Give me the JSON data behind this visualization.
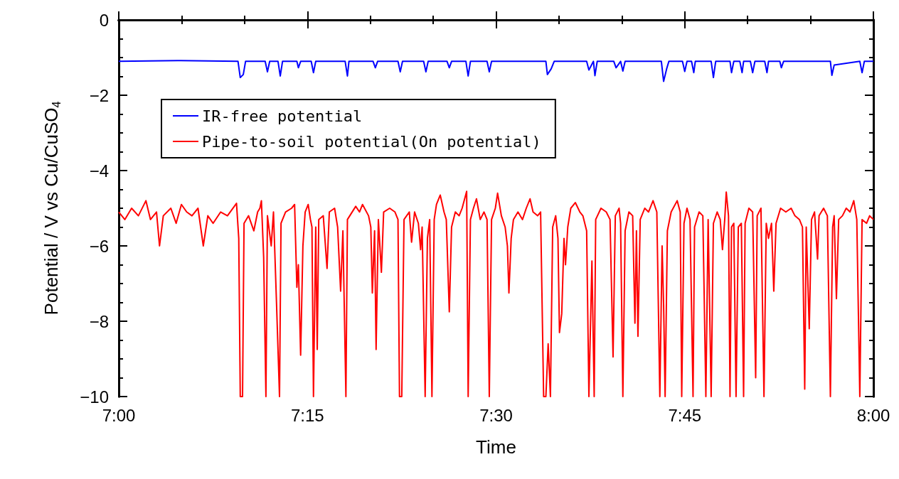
{
  "chart_data": {
    "type": "line",
    "xlabel": "Time",
    "ylabel": "Potential / V vs Cu/CuSO$_{4}$",
    "xlim": [
      7,
      8
    ],
    "xticks": [
      {
        "value": 7,
        "label": "7:00"
      },
      {
        "value": 7.0833,
        "label": null
      },
      {
        "value": 7.1667,
        "label": null
      },
      {
        "value": 7.25,
        "label": "7:15"
      },
      {
        "value": 7.3333,
        "label": null
      },
      {
        "value": 7.4167,
        "label": null
      },
      {
        "value": 7.5,
        "label": "7:30"
      },
      {
        "value": 7.5833,
        "label": null
      },
      {
        "value": 7.6667,
        "label": null
      },
      {
        "value": 7.75,
        "label": "7:45"
      },
      {
        "value": 7.8333,
        "label": null
      },
      {
        "value": 7.9167,
        "label": null
      },
      {
        "value": 8,
        "label": "8:00"
      }
    ],
    "ylim": [
      -10,
      0
    ],
    "yticks": [
      {
        "value": -10,
        "label": "−10"
      },
      {
        "value": -9.5,
        "label": null
      },
      {
        "value": -9,
        "label": null
      },
      {
        "value": -8.5,
        "label": null
      },
      {
        "value": -8,
        "label": "−8"
      },
      {
        "value": -7.5,
        "label": null
      },
      {
        "value": -7,
        "label": null
      },
      {
        "value": -6.5,
        "label": null
      },
      {
        "value": -6,
        "label": "−6"
      },
      {
        "value": -5.5,
        "label": null
      },
      {
        "value": -5,
        "label": null
      },
      {
        "value": -4.5,
        "label": null
      },
      {
        "value": -4,
        "label": "−4"
      },
      {
        "value": -3.5,
        "label": null
      },
      {
        "value": -3,
        "label": null
      },
      {
        "value": -2.5,
        "label": null
      },
      {
        "value": -2,
        "label": "−2"
      },
      {
        "value": -1.5,
        "label": null
      },
      {
        "value": -1,
        "label": null
      },
      {
        "value": -0.5,
        "label": null
      },
      {
        "value": 0,
        "label": "0"
      }
    ],
    "grid": false,
    "legend": "top left",
    "series": [
      {
        "name": "IR-free potential",
        "color": "#0000ff",
        "x": [
          7.0,
          7.078,
          7.158,
          7.161,
          7.165,
          7.168,
          7.194,
          7.197,
          7.2,
          7.211,
          7.214,
          7.217,
          7.236,
          7.238,
          7.241,
          7.255,
          7.258,
          7.261,
          7.3,
          7.303,
          7.305,
          7.337,
          7.34,
          7.343,
          7.37,
          7.373,
          7.376,
          7.404,
          7.407,
          7.41,
          7.435,
          7.438,
          7.441,
          7.46,
          7.463,
          7.466,
          7.488,
          7.491,
          7.494,
          7.566,
          7.568,
          7.573,
          7.577,
          7.62,
          7.623,
          7.629,
          7.631,
          7.634,
          7.656,
          7.659,
          7.665,
          7.668,
          7.671,
          7.719,
          7.722,
          7.726,
          7.729,
          7.747,
          7.75,
          7.753,
          7.759,
          7.762,
          7.764,
          7.785,
          7.788,
          7.791,
          7.81,
          7.812,
          7.815,
          7.823,
          7.826,
          7.828,
          7.837,
          7.84,
          7.843,
          7.856,
          7.859,
          7.861,
          7.876,
          7.878,
          7.881,
          7.943,
          7.945,
          7.948,
          7.982,
          7.985,
          7.988,
          8.0
        ],
        "values": [
          -1.1,
          -1.08,
          -1.1,
          -1.53,
          -1.45,
          -1.1,
          -1.1,
          -1.38,
          -1.1,
          -1.1,
          -1.49,
          -1.1,
          -1.1,
          -1.27,
          -1.1,
          -1.1,
          -1.4,
          -1.1,
          -1.1,
          -1.49,
          -1.1,
          -1.1,
          -1.27,
          -1.1,
          -1.1,
          -1.38,
          -1.1,
          -1.1,
          -1.38,
          -1.1,
          -1.1,
          -1.27,
          -1.1,
          -1.1,
          -1.49,
          -1.1,
          -1.1,
          -1.38,
          -1.1,
          -1.1,
          -1.45,
          -1.3,
          -1.1,
          -1.1,
          -1.33,
          -1.1,
          -1.48,
          -1.1,
          -1.1,
          -1.27,
          -1.1,
          -1.36,
          -1.1,
          -1.1,
          -1.63,
          -1.3,
          -1.1,
          -1.1,
          -1.37,
          -1.1,
          -1.1,
          -1.4,
          -1.1,
          -1.1,
          -1.53,
          -1.1,
          -1.1,
          -1.4,
          -1.1,
          -1.1,
          -1.4,
          -1.1,
          -1.1,
          -1.4,
          -1.1,
          -1.1,
          -1.4,
          -1.1,
          -1.1,
          -1.27,
          -1.1,
          -1.1,
          -1.47,
          -1.2,
          -1.1,
          -1.4,
          -1.1,
          -1.1
        ]
      },
      {
        "name": "Pipe-to-soil potential(On potential)",
        "color": "#ff0000",
        "x": [
          7.0,
          7.008,
          7.017,
          7.026,
          7.036,
          7.042,
          7.05,
          7.054,
          7.059,
          7.069,
          7.076,
          7.083,
          7.09,
          7.097,
          7.105,
          7.112,
          7.118,
          7.125,
          7.135,
          7.144,
          7.156,
          7.159,
          7.161,
          7.164,
          7.166,
          7.172,
          7.179,
          7.184,
          7.187,
          7.189,
          7.192,
          7.195,
          7.197,
          7.202,
          7.205,
          7.209,
          7.213,
          7.215,
          7.221,
          7.229,
          7.233,
          7.236,
          7.238,
          7.241,
          7.244,
          7.247,
          7.251,
          7.254,
          7.256,
          7.258,
          7.261,
          7.263,
          7.265,
          7.271,
          7.276,
          7.279,
          7.286,
          7.29,
          7.294,
          7.297,
          7.301,
          7.303,
          7.314,
          7.319,
          7.323,
          7.331,
          7.334,
          7.336,
          7.339,
          7.341,
          7.344,
          7.348,
          7.351,
          7.359,
          7.366,
          7.37,
          7.372,
          7.375,
          7.378,
          7.385,
          7.388,
          7.392,
          7.397,
          7.4,
          7.402,
          7.406,
          7.409,
          7.412,
          7.415,
          7.418,
          7.421,
          7.426,
          7.431,
          7.434,
          7.438,
          7.441,
          7.446,
          7.451,
          7.455,
          7.461,
          7.463,
          7.466,
          7.47,
          7.474,
          7.479,
          7.484,
          7.488,
          7.491,
          7.494,
          7.499,
          7.502,
          7.507,
          7.512,
          7.515,
          7.517,
          7.52,
          7.523,
          7.529,
          7.535,
          7.54,
          7.545,
          7.549,
          7.555,
          7.559,
          7.563,
          7.566,
          7.569,
          7.572,
          7.575,
          7.579,
          7.582,
          7.584,
          7.587,
          7.59,
          7.592,
          7.595,
          7.599,
          7.605,
          7.611,
          7.615,
          7.62,
          7.623,
          7.627,
          7.63,
          7.632,
          7.639,
          7.646,
          7.651,
          7.655,
          7.658,
          7.663,
          7.665,
          7.668,
          7.671,
          7.676,
          7.681,
          7.684,
          7.686,
          7.688,
          7.691,
          7.697,
          7.702,
          7.708,
          7.713,
          7.717,
          7.72,
          7.722,
          7.724,
          7.727,
          7.732,
          7.74,
          7.744,
          7.746,
          7.749,
          7.753,
          7.757,
          7.761,
          7.763,
          7.769,
          7.774,
          7.778,
          7.781,
          7.785,
          7.788,
          7.793,
          7.797,
          7.8,
          7.803,
          7.805,
          7.808,
          7.81,
          7.812,
          7.815,
          7.818,
          7.821,
          7.825,
          7.828,
          7.83,
          7.835,
          7.84,
          7.844,
          7.846,
          7.851,
          7.855,
          7.858,
          7.861,
          7.865,
          7.868,
          7.871,
          7.877,
          7.884,
          7.891,
          7.896,
          7.902,
          7.906,
          7.909,
          7.911,
          7.915,
          7.918,
          7.922,
          7.926,
          7.928,
          7.934,
          7.939,
          7.943,
          7.946,
          7.948,
          7.951,
          7.954,
          7.959,
          7.964,
          7.969,
          7.974,
          7.978,
          7.982,
          7.985,
          7.991,
          7.995,
          8.0
        ],
        "values": [
          -5.1,
          -5.3,
          -5.0,
          -5.2,
          -4.8,
          -5.3,
          -5.1,
          -6.0,
          -5.2,
          -5.0,
          -5.4,
          -4.9,
          -5.1,
          -5.2,
          -5.0,
          -6.0,
          -5.2,
          -5.4,
          -5.1,
          -5.2,
          -4.87,
          -5.8,
          -10,
          -10,
          -5.4,
          -5.2,
          -5.6,
          -5.1,
          -5.0,
          -4.8,
          -6.3,
          -10,
          -5.2,
          -6.0,
          -5.1,
          -7.5,
          -10,
          -5.4,
          -5.1,
          -5.0,
          -4.9,
          -7.1,
          -6.5,
          -8.9,
          -6.0,
          -5.1,
          -4.9,
          -5.3,
          -5.5,
          -10,
          -5.5,
          -8.75,
          -5.3,
          -5.2,
          -6.6,
          -5.1,
          -5.0,
          -5.5,
          -7.2,
          -5.6,
          -10,
          -5.3,
          -4.95,
          -5.1,
          -4.9,
          -5.2,
          -5.5,
          -7.25,
          -5.6,
          -8.75,
          -5.3,
          -6.7,
          -5.1,
          -5.0,
          -5.1,
          -5.3,
          -10,
          -10,
          -5.3,
          -5.1,
          -5.9,
          -5.1,
          -5.4,
          -6.1,
          -5.5,
          -10,
          -5.8,
          -5.3,
          -10,
          -5.3,
          -4.9,
          -4.65,
          -5.1,
          -5.3,
          -7.75,
          -5.5,
          -5.1,
          -5.2,
          -5.0,
          -4.55,
          -10,
          -5.3,
          -5.0,
          -4.75,
          -5.3,
          -5.1,
          -5.3,
          -10,
          -5.3,
          -5.0,
          -4.6,
          -5.2,
          -5.5,
          -6.0,
          -7.25,
          -5.8,
          -5.3,
          -5.1,
          -5.3,
          -5.0,
          -4.75,
          -5.1,
          -5.2,
          -5.1,
          -10,
          -10,
          -8.6,
          -10,
          -5.5,
          -5.2,
          -5.8,
          -8.3,
          -7.8,
          -5.8,
          -6.5,
          -5.5,
          -5.0,
          -4.85,
          -5.1,
          -5.2,
          -5.6,
          -10,
          -6.4,
          -10,
          -5.3,
          -5.0,
          -5.1,
          -5.3,
          -8.95,
          -5.2,
          -5.0,
          -5.4,
          -10,
          -5.6,
          -5.1,
          -5.2,
          -8.05,
          -5.6,
          -8.4,
          -5.3,
          -5.0,
          -5.1,
          -4.8,
          -5.1,
          -10,
          -6.0,
          -7.55,
          -10,
          -5.6,
          -5.1,
          -4.8,
          -5.1,
          -10,
          -5.4,
          -5.0,
          -5.3,
          -10,
          -5.5,
          -5.1,
          -5.2,
          -10,
          -5.3,
          -10,
          -5.4,
          -5.1,
          -5.3,
          -6.1,
          -5.3,
          -4.57,
          -5.2,
          -10,
          -5.5,
          -5.4,
          -10,
          -5.5,
          -5.4,
          -10,
          -5.4,
          -5.0,
          -5.1,
          -9.5,
          -5.2,
          -5.0,
          -10,
          -5.4,
          -5.8,
          -5.4,
          -7.2,
          -5.4,
          -5.0,
          -5.1,
          -5.0,
          -5.2,
          -5.3,
          -5.5,
          -9.8,
          -5.5,
          -8.2,
          -5.3,
          -5.1,
          -6.35,
          -5.2,
          -5.0,
          -5.2,
          -10,
          -5.5,
          -5.2,
          -7.4,
          -5.3,
          -5.2,
          -5.0,
          -5.1,
          -4.8,
          -5.3,
          -10,
          -5.3,
          -5.4,
          -5.2,
          -5.3
        ]
      }
    ]
  }
}
